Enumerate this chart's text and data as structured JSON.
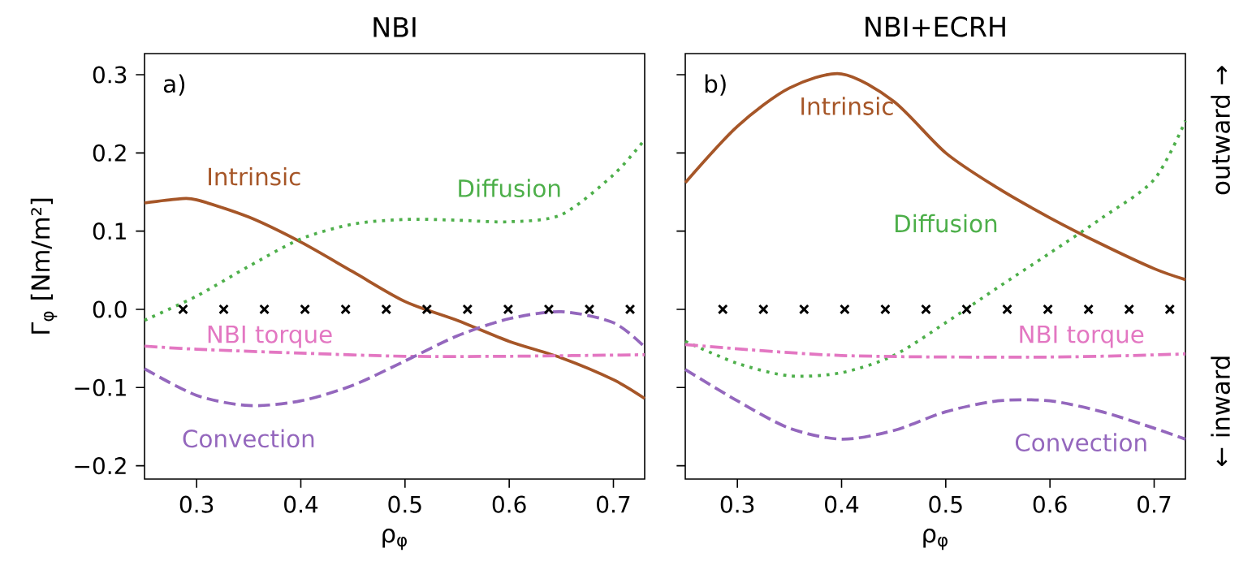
{
  "chart_data": [
    {
      "type": "line",
      "title": "NBI",
      "xlabel": "ρ$_{φ}$",
      "ylabel": "Γ$_{φ}$ [Nm/m²]",
      "annotations": [
        "a)"
      ],
      "xlim": [
        0.25,
        0.73
      ],
      "ylim": [
        -0.217,
        0.327
      ],
      "xticks": [
        0.3,
        0.4,
        0.5,
        0.6,
        0.7
      ],
      "yticks": [
        {
          "value": -0.2,
          "label": "−0.2"
        },
        {
          "value": -0.1,
          "label": "−0.1"
        },
        {
          "value": 0.0,
          "label": "0.0"
        },
        0.1,
        0.2,
        0.3
      ],
      "grid": false,
      "series": [
        {
          "name": "Intrinsic",
          "color": "#a65628",
          "line_style": "solid",
          "x": [
            0.25,
            0.282,
            0.3,
            0.35,
            0.4,
            0.45,
            0.5,
            0.55,
            0.6,
            0.65,
            0.7,
            0.73
          ],
          "values": [
            0.136,
            0.141,
            0.14,
            0.118,
            0.086,
            0.048,
            0.01,
            -0.014,
            -0.041,
            -0.062,
            -0.09,
            -0.114
          ]
        },
        {
          "name": "Diffusion",
          "color": "#4daf4a",
          "line_style": "dotted",
          "x": [
            0.25,
            0.3,
            0.35,
            0.4,
            0.45,
            0.5,
            0.55,
            0.6,
            0.65,
            0.7,
            0.73
          ],
          "values": [
            -0.014,
            0.017,
            0.055,
            0.09,
            0.109,
            0.115,
            0.114,
            0.112,
            0.121,
            0.172,
            0.217
          ]
        },
        {
          "name": "NBI torque",
          "color": "#e377c2",
          "line_style": "dashdot",
          "x": [
            0.25,
            0.3,
            0.4,
            0.5,
            0.6,
            0.73
          ],
          "values": [
            -0.047,
            -0.051,
            -0.056,
            -0.06,
            -0.06,
            -0.058
          ]
        },
        {
          "name": "Convection",
          "color": "#9467bd",
          "line_style": "dashed",
          "x": [
            0.25,
            0.3,
            0.35,
            0.4,
            0.45,
            0.5,
            0.55,
            0.6,
            0.65,
            0.7,
            0.73
          ],
          "values": [
            -0.076,
            -0.11,
            -0.123,
            -0.117,
            -0.097,
            -0.066,
            -0.034,
            -0.012,
            -0.003,
            -0.017,
            -0.048
          ]
        },
        {
          "type": "scatter",
          "color": "#000000",
          "marker": "cross",
          "x": [
            0.287,
            0.326,
            0.365,
            0.404,
            0.443,
            0.482,
            0.521,
            0.56,
            0.599,
            0.638,
            0.677,
            0.716
          ],
          "values": [
            0,
            0,
            0,
            0,
            0,
            0,
            0,
            0,
            0,
            0,
            0,
            0
          ]
        }
      ]
    },
    {
      "type": "line",
      "title": "NBI+ECRH",
      "xlabel": "ρ$_{φ}$",
      "annotations": [
        "b)",
        "outward →",
        "← inward"
      ],
      "xlim": [
        0.25,
        0.73
      ],
      "ylim": [
        -0.217,
        0.327
      ],
      "xticks": [
        0.3,
        0.4,
        0.5,
        0.6,
        0.7
      ],
      "yticks": [
        {
          "value": -0.2,
          "label": null
        },
        {
          "value": -0.1,
          "label": null
        },
        {
          "value": 0.0,
          "label": null
        },
        {
          "value": 0.1,
          "label": null
        },
        {
          "value": 0.2,
          "label": null
        },
        {
          "value": 0.3,
          "label": null
        }
      ],
      "tick_labels": "x",
      "grid": false,
      "series": [
        {
          "name": "Intrinsic",
          "color": "#a65628",
          "line_style": "solid",
          "x": [
            0.25,
            0.3,
            0.35,
            0.4,
            0.45,
            0.5,
            0.55,
            0.6,
            0.65,
            0.7,
            0.73
          ],
          "values": [
            0.162,
            0.234,
            0.283,
            0.301,
            0.266,
            0.2,
            0.155,
            0.117,
            0.083,
            0.052,
            0.038
          ]
        },
        {
          "name": "Diffusion",
          "color": "#4daf4a",
          "line_style": "dotted",
          "x": [
            0.25,
            0.3,
            0.35,
            0.4,
            0.45,
            0.5,
            0.55,
            0.6,
            0.65,
            0.7,
            0.73
          ],
          "values": [
            -0.041,
            -0.069,
            -0.085,
            -0.081,
            -0.059,
            -0.017,
            0.028,
            0.072,
            0.117,
            0.166,
            0.241
          ]
        },
        {
          "name": "NBI torque",
          "color": "#e377c2",
          "line_style": "dashdot",
          "x": [
            0.25,
            0.4,
            0.6,
            0.73
          ],
          "values": [
            -0.045,
            -0.059,
            -0.061,
            -0.057
          ]
        },
        {
          "name": "Convection",
          "color": "#9467bd",
          "line_style": "dashed",
          "x": [
            0.25,
            0.3,
            0.35,
            0.4,
            0.45,
            0.5,
            0.55,
            0.6,
            0.65,
            0.7,
            0.73
          ],
          "values": [
            -0.077,
            -0.117,
            -0.152,
            -0.166,
            -0.155,
            -0.131,
            -0.117,
            -0.117,
            -0.131,
            -0.152,
            -0.166
          ]
        },
        {
          "type": "scatter",
          "color": "#000000",
          "marker": "cross",
          "x": [
            0.286,
            0.325,
            0.364,
            0.403,
            0.442,
            0.481,
            0.52,
            0.559,
            0.598,
            0.637,
            0.676,
            0.715
          ],
          "values": [
            0,
            0,
            0,
            0,
            0,
            0,
            0,
            0,
            0,
            0,
            0,
            0
          ]
        }
      ]
    }
  ]
}
